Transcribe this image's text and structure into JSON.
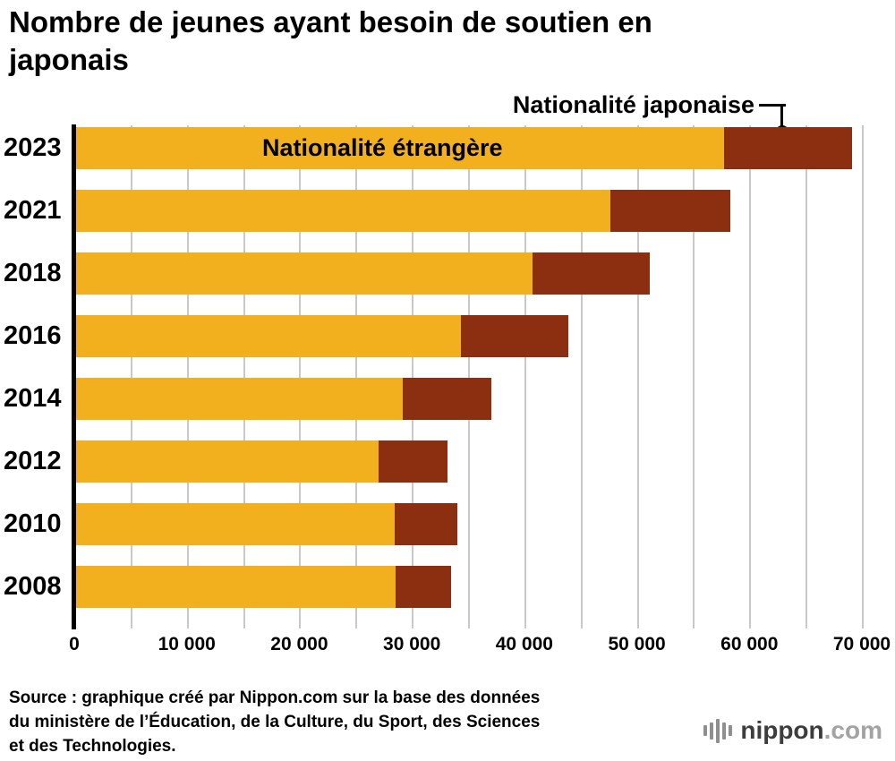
{
  "title": "Nombre de jeunes ayant besoin de soutien en japonais",
  "chart_data": {
    "type": "bar",
    "orientation": "horizontal",
    "stacked": true,
    "categories": [
      "2023",
      "2021",
      "2018",
      "2016",
      "2014",
      "2012",
      "2010",
      "2008"
    ],
    "series": [
      {
        "name": "Nationalité étrangère",
        "color": "#F2B01E",
        "values": [
          57718,
          47619,
          40755,
          34335,
          29198,
          27013,
          28511,
          28575
        ]
      },
      {
        "name": "Nationalité japonaise",
        "color": "#8C2E10",
        "values": [
          11372,
          10688,
          10371,
          9612,
          7897,
          6171,
          5496,
          4895
        ]
      }
    ],
    "xmax": 70000,
    "grid_step": 5000,
    "grid_on": true,
    "grid_color": "#c9c9c9",
    "axis_color": "#000000",
    "ticks": [
      {
        "value": 0,
        "label": "0"
      },
      {
        "value": 10000,
        "label": "10 000"
      },
      {
        "value": 20000,
        "label": "20 000"
      },
      {
        "value": 30000,
        "label": "30 000"
      },
      {
        "value": 40000,
        "label": "40 000"
      },
      {
        "value": 50000,
        "label": "50 000"
      },
      {
        "value": 60000,
        "label": "60 000"
      },
      {
        "value": 70000,
        "label": "70 000"
      }
    ]
  },
  "source": {
    "lines": [
      "Source : graphique créé par Nippon.com sur la base des données",
      "du ministère de l’Éducation, de la Culture, du Sport, des Sciences",
      "et des Technologies."
    ]
  },
  "brand": {
    "icon": "equalizer-bars-icon",
    "main": "nippon",
    "suffix": ".com"
  }
}
